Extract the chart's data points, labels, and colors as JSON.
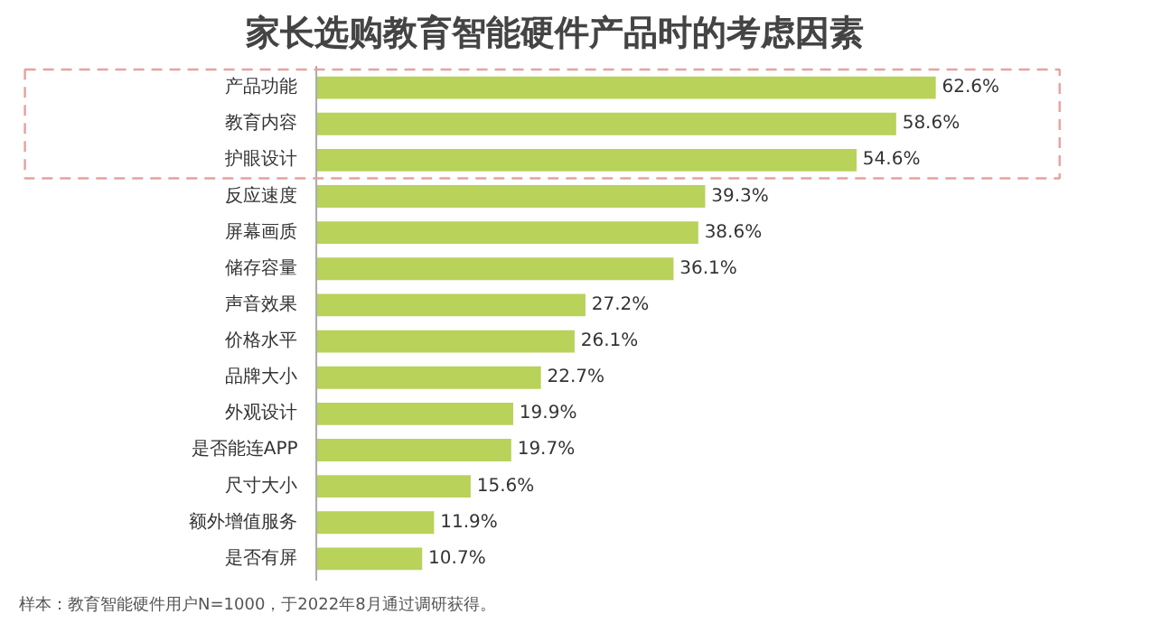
{
  "chart_data": {
    "type": "bar",
    "orientation": "horizontal",
    "title": "家长选购教育智能硬件产品时的考虑因素",
    "categories": [
      "产品功能",
      "教育内容",
      "护眼设计",
      "反应速度",
      "屏幕画质",
      "储存容量",
      "声音效果",
      "价格水平",
      "品牌大小",
      "外观设计",
      "是否能连APP",
      "尺寸大小",
      "额外增值服务",
      "是否有屏"
    ],
    "values": [
      62.6,
      58.6,
      54.6,
      39.3,
      38.6,
      36.1,
      27.2,
      26.1,
      22.7,
      19.9,
      19.7,
      15.6,
      11.9,
      10.7
    ],
    "value_labels": [
      "62.6%",
      "58.6%",
      "54.6%",
      "39.3%",
      "38.6%",
      "36.1%",
      "27.2%",
      "26.1%",
      "22.7%",
      "19.9%",
      "19.7%",
      "15.6%",
      "11.9%",
      "10.7%"
    ],
    "color": "#b8d25a",
    "annotations": [
      "样本：教育智能硬件用户N=1000，于2022年8月通过调研获得。"
    ],
    "grid": false
  }
}
